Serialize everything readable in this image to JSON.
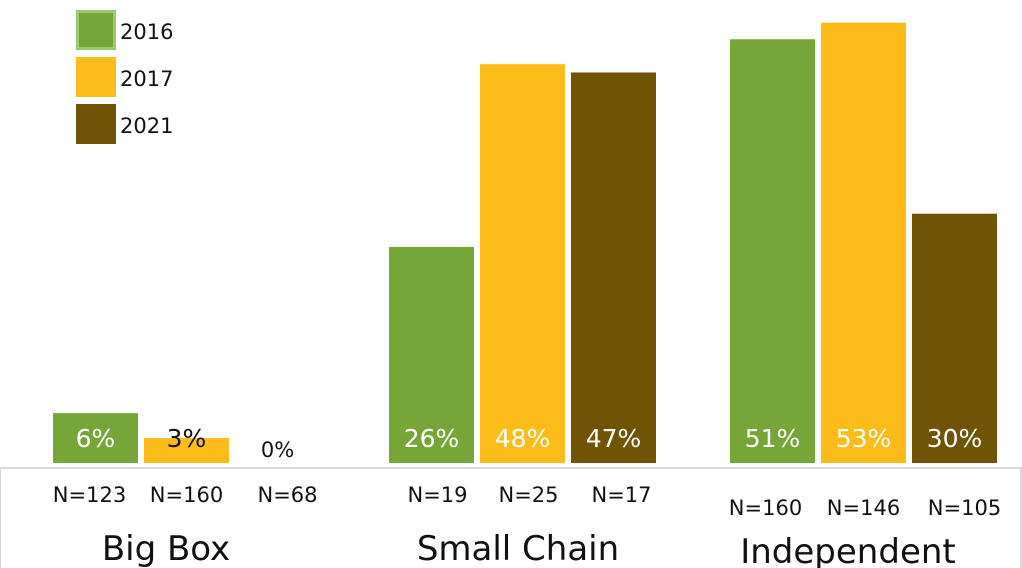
{
  "chart_data": {
    "type": "bar",
    "categories": [
      "Big Box",
      "Small Chain",
      "Independent"
    ],
    "series": [
      {
        "name": "2016",
        "values": [
          6,
          26,
          51
        ],
        "color": "#76a538",
        "labels": [
          "6%",
          "26%",
          "51%"
        ],
        "n": [
          "N=123",
          "N=19",
          "N=160"
        ]
      },
      {
        "name": "2017",
        "values": [
          3,
          48,
          53
        ],
        "color": "#fbbb18",
        "labels": [
          "3%",
          "48%",
          "53%"
        ],
        "n": [
          "N=160",
          "N=25",
          "N=146"
        ]
      },
      {
        "name": "2021",
        "values": [
          0,
          47,
          30
        ],
        "color": "#705405",
        "labels": [
          "0%",
          "47%",
          "30%"
        ],
        "n": [
          "N=68",
          "N=17",
          "N=105"
        ]
      }
    ],
    "ylim": [
      0,
      55
    ],
    "title": "",
    "xlabel": "",
    "ylabel": "",
    "grid": false,
    "legend": "top-left"
  }
}
